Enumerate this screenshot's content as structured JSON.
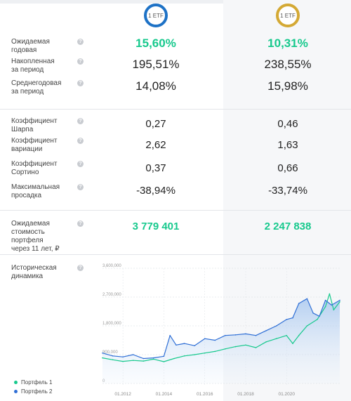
{
  "columns": [
    {
      "badge": "1 ETF",
      "ring_color": "#1e72c6"
    },
    {
      "badge": "1 ETF",
      "ring_color": "#d4a935"
    }
  ],
  "metrics": [
    {
      "label": "Ожидаемая годовая",
      "v1": "15,60%",
      "v2": "10,31%"
    },
    {
      "label": "Накопленная\nза период",
      "v1": "195,51%",
      "v2": "238,55%"
    },
    {
      "label": "Среднегодовая\nза период",
      "v1": "14,08%",
      "v2": "15,98%"
    },
    {
      "label": "Коэффициент Шарпа",
      "v1": "0,27",
      "v2": "0,46"
    },
    {
      "label": "Коэффициент\nвариации",
      "v1": "2,62",
      "v2": "1,63"
    },
    {
      "label": "Коэффициент\nСортино",
      "v1": "0,37",
      "v2": "0,66"
    },
    {
      "label": "Максимальная\nпросадка",
      "v1": "-38,94%",
      "v2": "-33,74%"
    },
    {
      "label": "Ожидаемая\nстоимость портфеля\nчерез 11 лет, ₽",
      "v1": "3 779 401",
      "v2": "2 247 838"
    }
  ],
  "help_symbol": "?",
  "history": {
    "label": "Историческая\nдинамика"
  },
  "legend": [
    {
      "name": "Портфель 1",
      "color": "#17c98d"
    },
    {
      "name": "Портфель 2",
      "color": "#2f6fd6"
    }
  ],
  "chart_data": {
    "type": "line",
    "yticks": [
      "3,600,000",
      "2,700,000",
      "1,800,000",
      "900,000",
      "0"
    ],
    "ytick_values": [
      3600000,
      2700000,
      1800000,
      900000,
      0
    ],
    "xticks": [
      "01.2012",
      "01.2014",
      "01.2016",
      "01.2018",
      "01.2020"
    ],
    "xtick_values": [
      2012,
      2014,
      2016,
      2018,
      2020
    ],
    "xlim": [
      2011,
      2022.6
    ],
    "ylim": [
      0,
      3600000
    ],
    "grid": true,
    "legend_position": "bottom-left",
    "series": [
      {
        "name": "Портфель 1",
        "color": "#17c98d",
        "x": [
          2011.0,
          2011.5,
          2012.0,
          2012.5,
          2013.0,
          2013.5,
          2014.0,
          2014.5,
          2015.0,
          2015.5,
          2016.0,
          2016.5,
          2017.0,
          2017.5,
          2018.0,
          2018.5,
          2019.0,
          2019.5,
          2020.0,
          2020.3,
          2020.6,
          2021.0,
          2021.5,
          2021.9,
          2022.1,
          2022.3,
          2022.6
        ],
        "y": [
          800000,
          740000,
          690000,
          720000,
          700000,
          760000,
          680000,
          780000,
          860000,
          900000,
          950000,
          1000000,
          1080000,
          1150000,
          1200000,
          1120000,
          1300000,
          1400000,
          1500000,
          1250000,
          1500000,
          1800000,
          2000000,
          2400000,
          2800000,
          2300000,
          2550000
        ]
      },
      {
        "name": "Портфель 2",
        "color": "#2f6fd6",
        "x": [
          2011.0,
          2011.5,
          2012.0,
          2012.5,
          2013.0,
          2013.5,
          2014.0,
          2014.3,
          2014.6,
          2015.0,
          2015.5,
          2016.0,
          2016.5,
          2017.0,
          2017.5,
          2018.0,
          2018.5,
          2019.0,
          2019.5,
          2020.0,
          2020.3,
          2020.6,
          2021.0,
          2021.3,
          2021.6,
          2021.9,
          2022.2,
          2022.6
        ],
        "y": [
          950000,
          860000,
          830000,
          900000,
          780000,
          800000,
          850000,
          1500000,
          1200000,
          1250000,
          1180000,
          1400000,
          1350000,
          1500000,
          1520000,
          1550000,
          1500000,
          1650000,
          1800000,
          2000000,
          2050000,
          2500000,
          2650000,
          2200000,
          2100000,
          2600000,
          2450000,
          2600000
        ]
      }
    ]
  }
}
